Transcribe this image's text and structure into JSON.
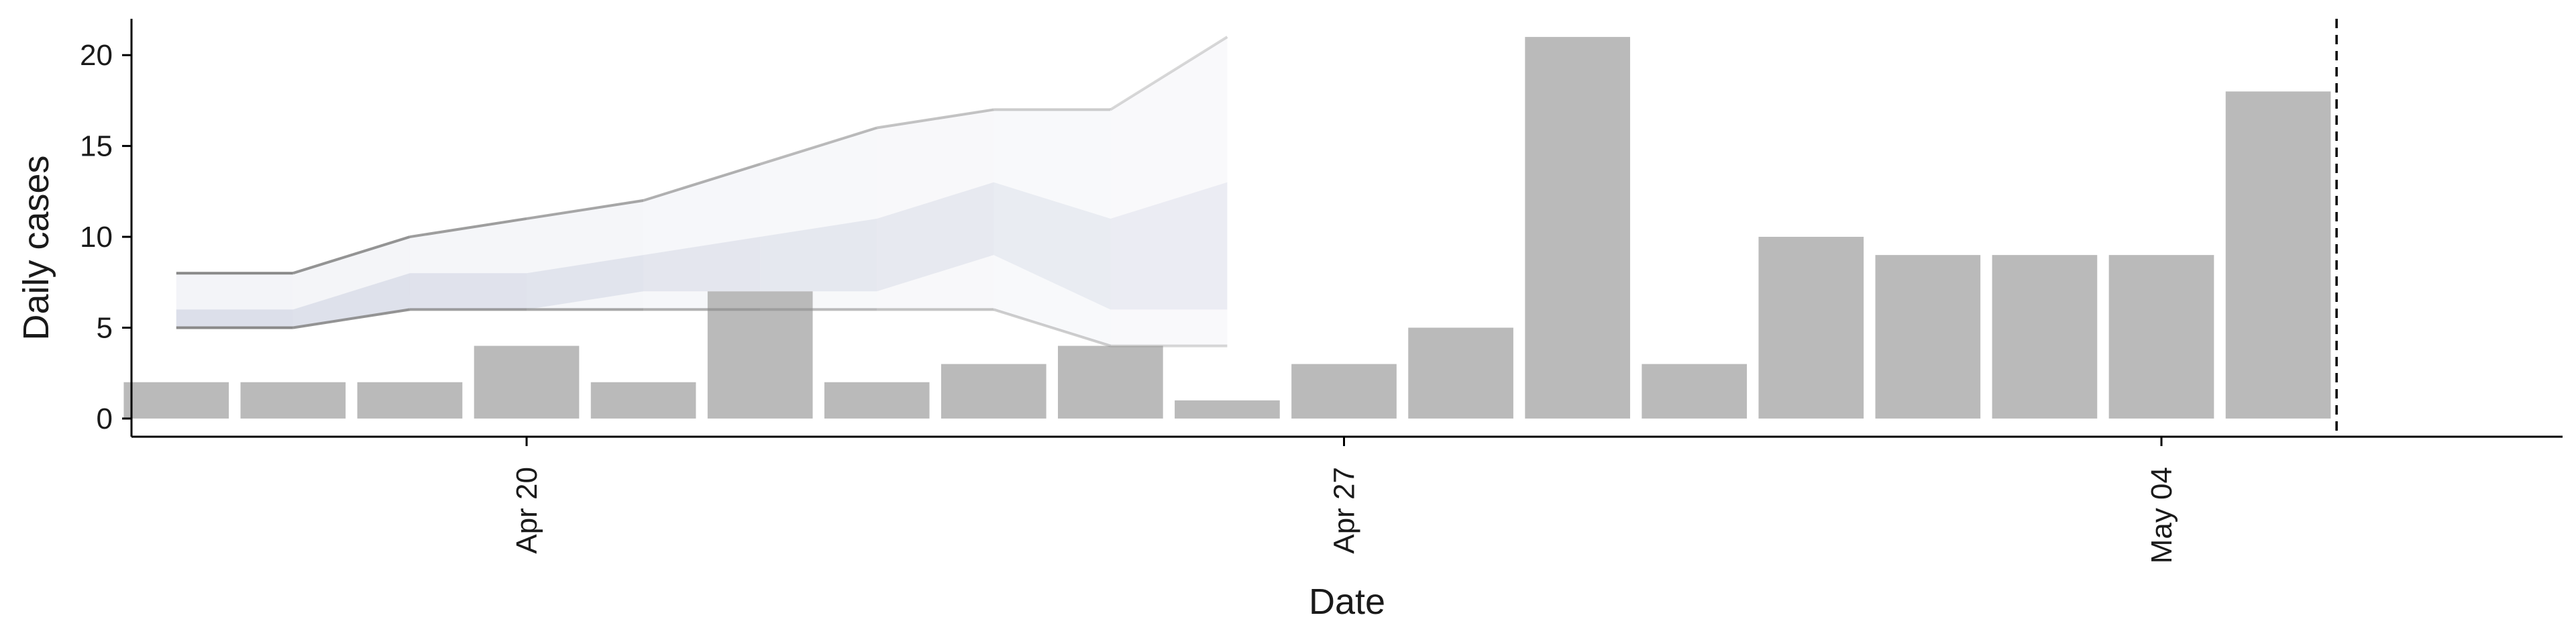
{
  "chart_data": {
    "type": "bar",
    "xlabel": "Date",
    "ylabel": "Daily cases",
    "ylim": [
      -1,
      22
    ],
    "y_ticks": [
      0,
      5,
      10,
      15,
      20
    ],
    "x_ticks": [
      {
        "date": "2020-04-20",
        "label": "Apr 20"
      },
      {
        "date": "2020-04-27",
        "label": "Apr 27"
      },
      {
        "date": "2020-05-04",
        "label": "May 04"
      }
    ],
    "x_range": [
      "2020-04-15",
      "2020-05-10"
    ],
    "bar_color": "#bababa",
    "band_color": "#c9cede",
    "line_color": "#8a8a8a",
    "cases": [
      {
        "date": "2020-04-17",
        "value": 2
      },
      {
        "date": "2020-04-18",
        "value": 2
      },
      {
        "date": "2020-04-19",
        "value": 2
      },
      {
        "date": "2020-04-20",
        "value": 4
      },
      {
        "date": "2020-04-21",
        "value": 2
      },
      {
        "date": "2020-04-22",
        "value": 7
      },
      {
        "date": "2020-04-23",
        "value": 2
      },
      {
        "date": "2020-04-24",
        "value": 3
      },
      {
        "date": "2020-04-25",
        "value": 4
      },
      {
        "date": "2020-04-26",
        "value": 1
      },
      {
        "date": "2020-04-27",
        "value": 3
      },
      {
        "date": "2020-04-28",
        "value": 5
      },
      {
        "date": "2020-04-29",
        "value": 21
      },
      {
        "date": "2020-04-30",
        "value": 3
      },
      {
        "date": "2020-05-01",
        "value": 10
      },
      {
        "date": "2020-05-02",
        "value": 9
      },
      {
        "date": "2020-05-03",
        "value": 9
      },
      {
        "date": "2020-05-04",
        "value": 9
      },
      {
        "date": "2020-05-05",
        "value": 18
      }
    ],
    "estimate": [
      {
        "date": "2020-04-17",
        "lower_90": 5,
        "upper_90": 8,
        "lower_50": 5,
        "upper_50": 6
      },
      {
        "date": "2020-04-18",
        "lower_90": 5,
        "upper_90": 8,
        "lower_50": 5,
        "upper_50": 6
      },
      {
        "date": "2020-04-19",
        "lower_90": 6,
        "upper_90": 10,
        "lower_50": 6,
        "upper_50": 8
      },
      {
        "date": "2020-04-20",
        "lower_90": 6,
        "upper_90": 11,
        "lower_50": 6,
        "upper_50": 8
      },
      {
        "date": "2020-04-21",
        "lower_90": 6,
        "upper_90": 12,
        "lower_50": 7,
        "upper_50": 9
      },
      {
        "date": "2020-04-22",
        "lower_90": 6,
        "upper_90": 14,
        "lower_50": 7,
        "upper_50": 10
      },
      {
        "date": "2020-04-23",
        "lower_90": 6,
        "upper_90": 16,
        "lower_50": 7,
        "upper_50": 11
      },
      {
        "date": "2020-04-24",
        "lower_90": 6,
        "upper_90": 17,
        "lower_50": 9,
        "upper_50": 13
      },
      {
        "date": "2020-04-25",
        "lower_90": 4,
        "upper_90": 17,
        "lower_50": 6,
        "upper_50": 11
      },
      {
        "date": "2020-04-26",
        "lower_90": 4,
        "upper_90": 21,
        "lower_50": 6,
        "upper_50": 13
      }
    ],
    "vline_date": "2020-05-05T12:00"
  }
}
